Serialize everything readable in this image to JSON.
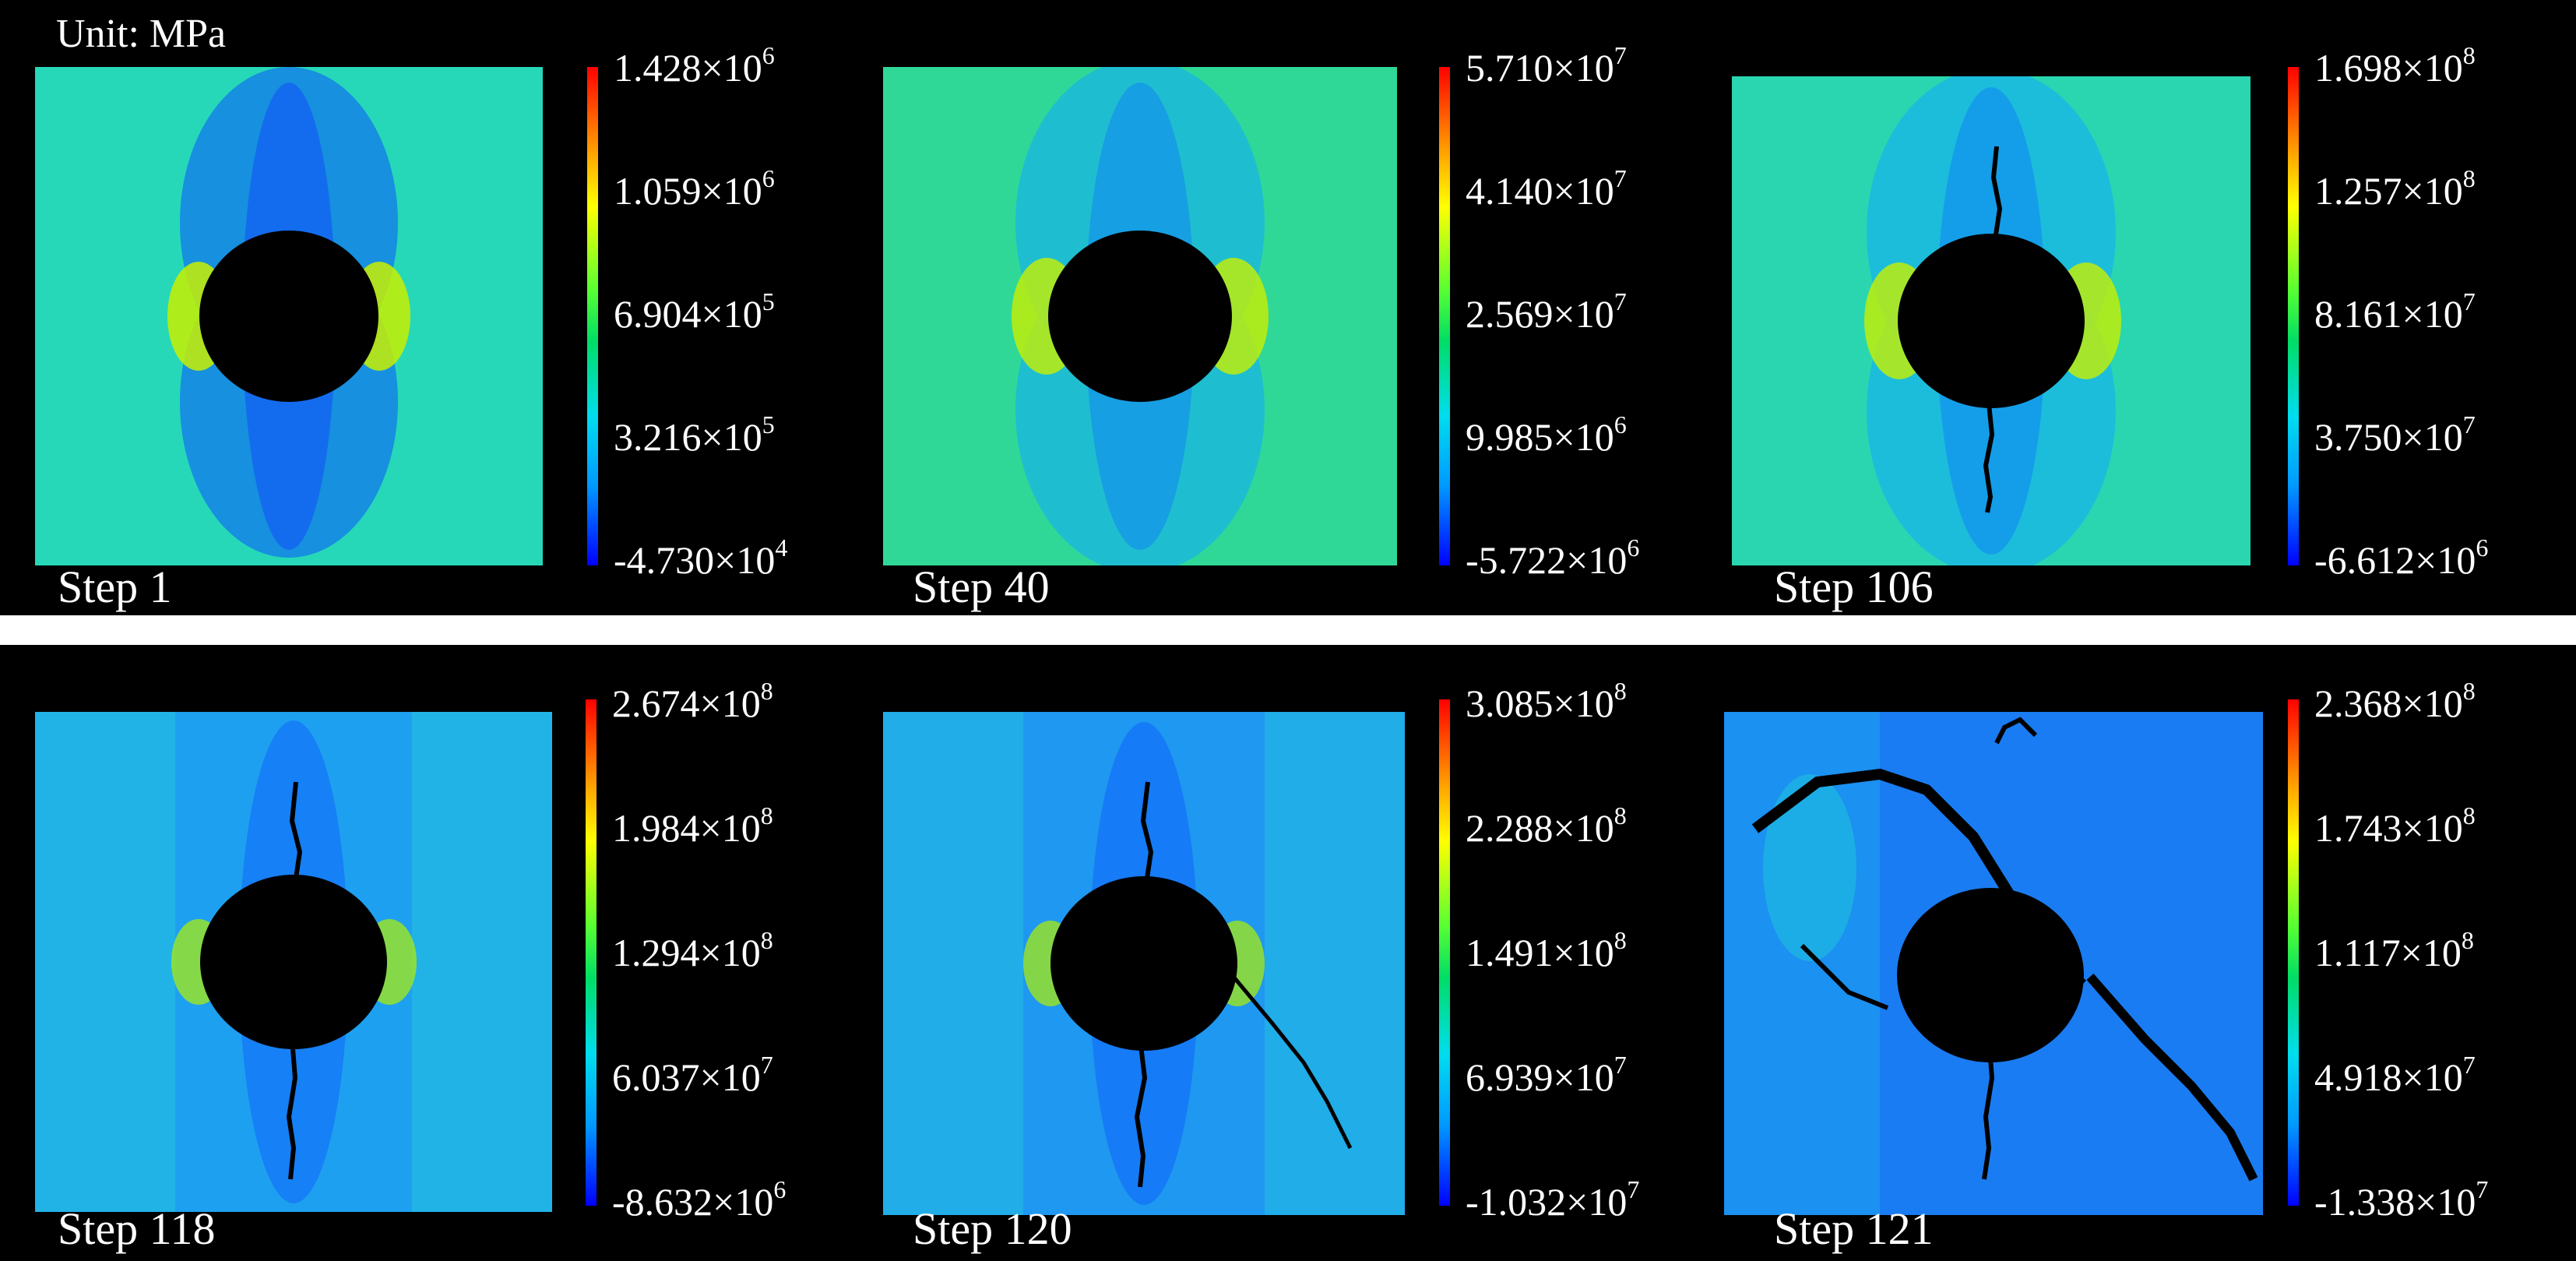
{
  "unit_label": "Unit: MPa",
  "colors": {
    "background": "#000000",
    "field_base_early": "#27d6c4",
    "field_base_late": "#1e90f0",
    "hole": "#000000",
    "colormap": [
      "#0000ff",
      "#0099ff",
      "#00ddee",
      "#00dd66",
      "#55ff33",
      "#ffff00",
      "#ffaa00",
      "#ff0000"
    ]
  },
  "panels": [
    {
      "step": "Step 1",
      "ticks": [
        {
          "mant": "1.428×10",
          "exp": "6"
        },
        {
          "mant": "1.059×10",
          "exp": "6"
        },
        {
          "mant": "6.904×10",
          "exp": "5"
        },
        {
          "mant": "3.216×10",
          "exp": "5"
        },
        {
          "mant": "-4.730×10",
          "exp": "4"
        }
      ]
    },
    {
      "step": "Step 40",
      "ticks": [
        {
          "mant": "5.710×10",
          "exp": "7"
        },
        {
          "mant": "4.140×10",
          "exp": "7"
        },
        {
          "mant": "2.569×10",
          "exp": "7"
        },
        {
          "mant": "9.985×10",
          "exp": "6"
        },
        {
          "mant": "-5.722×10",
          "exp": "6"
        }
      ]
    },
    {
      "step": "Step 106",
      "ticks": [
        {
          "mant": "1.698×10",
          "exp": "8"
        },
        {
          "mant": "1.257×10",
          "exp": "8"
        },
        {
          "mant": "8.161×10",
          "exp": "7"
        },
        {
          "mant": "3.750×10",
          "exp": "7"
        },
        {
          "mant": "-6.612×10",
          "exp": "6"
        }
      ]
    },
    {
      "step": "Step 118",
      "ticks": [
        {
          "mant": "2.674×10",
          "exp": "8"
        },
        {
          "mant": "1.984×10",
          "exp": "8"
        },
        {
          "mant": "1.294×10",
          "exp": "8"
        },
        {
          "mant": "6.037×10",
          "exp": "7"
        },
        {
          "mant": "-8.632×10",
          "exp": "6"
        }
      ]
    },
    {
      "step": "Step 120",
      "ticks": [
        {
          "mant": "3.085×10",
          "exp": "8"
        },
        {
          "mant": "2.288×10",
          "exp": "8"
        },
        {
          "mant": "1.491×10",
          "exp": "8"
        },
        {
          "mant": "6.939×10",
          "exp": "7"
        },
        {
          "mant": "-1.032×10",
          "exp": "7"
        }
      ]
    },
    {
      "step": "Step 121",
      "ticks": [
        {
          "mant": "2.368×10",
          "exp": "8"
        },
        {
          "mant": "1.743×10",
          "exp": "8"
        },
        {
          "mant": "1.117×10",
          "exp": "8"
        },
        {
          "mant": "4.918×10",
          "exp": "7"
        },
        {
          "mant": "-1.338×10",
          "exp": "7"
        }
      ]
    }
  ]
}
